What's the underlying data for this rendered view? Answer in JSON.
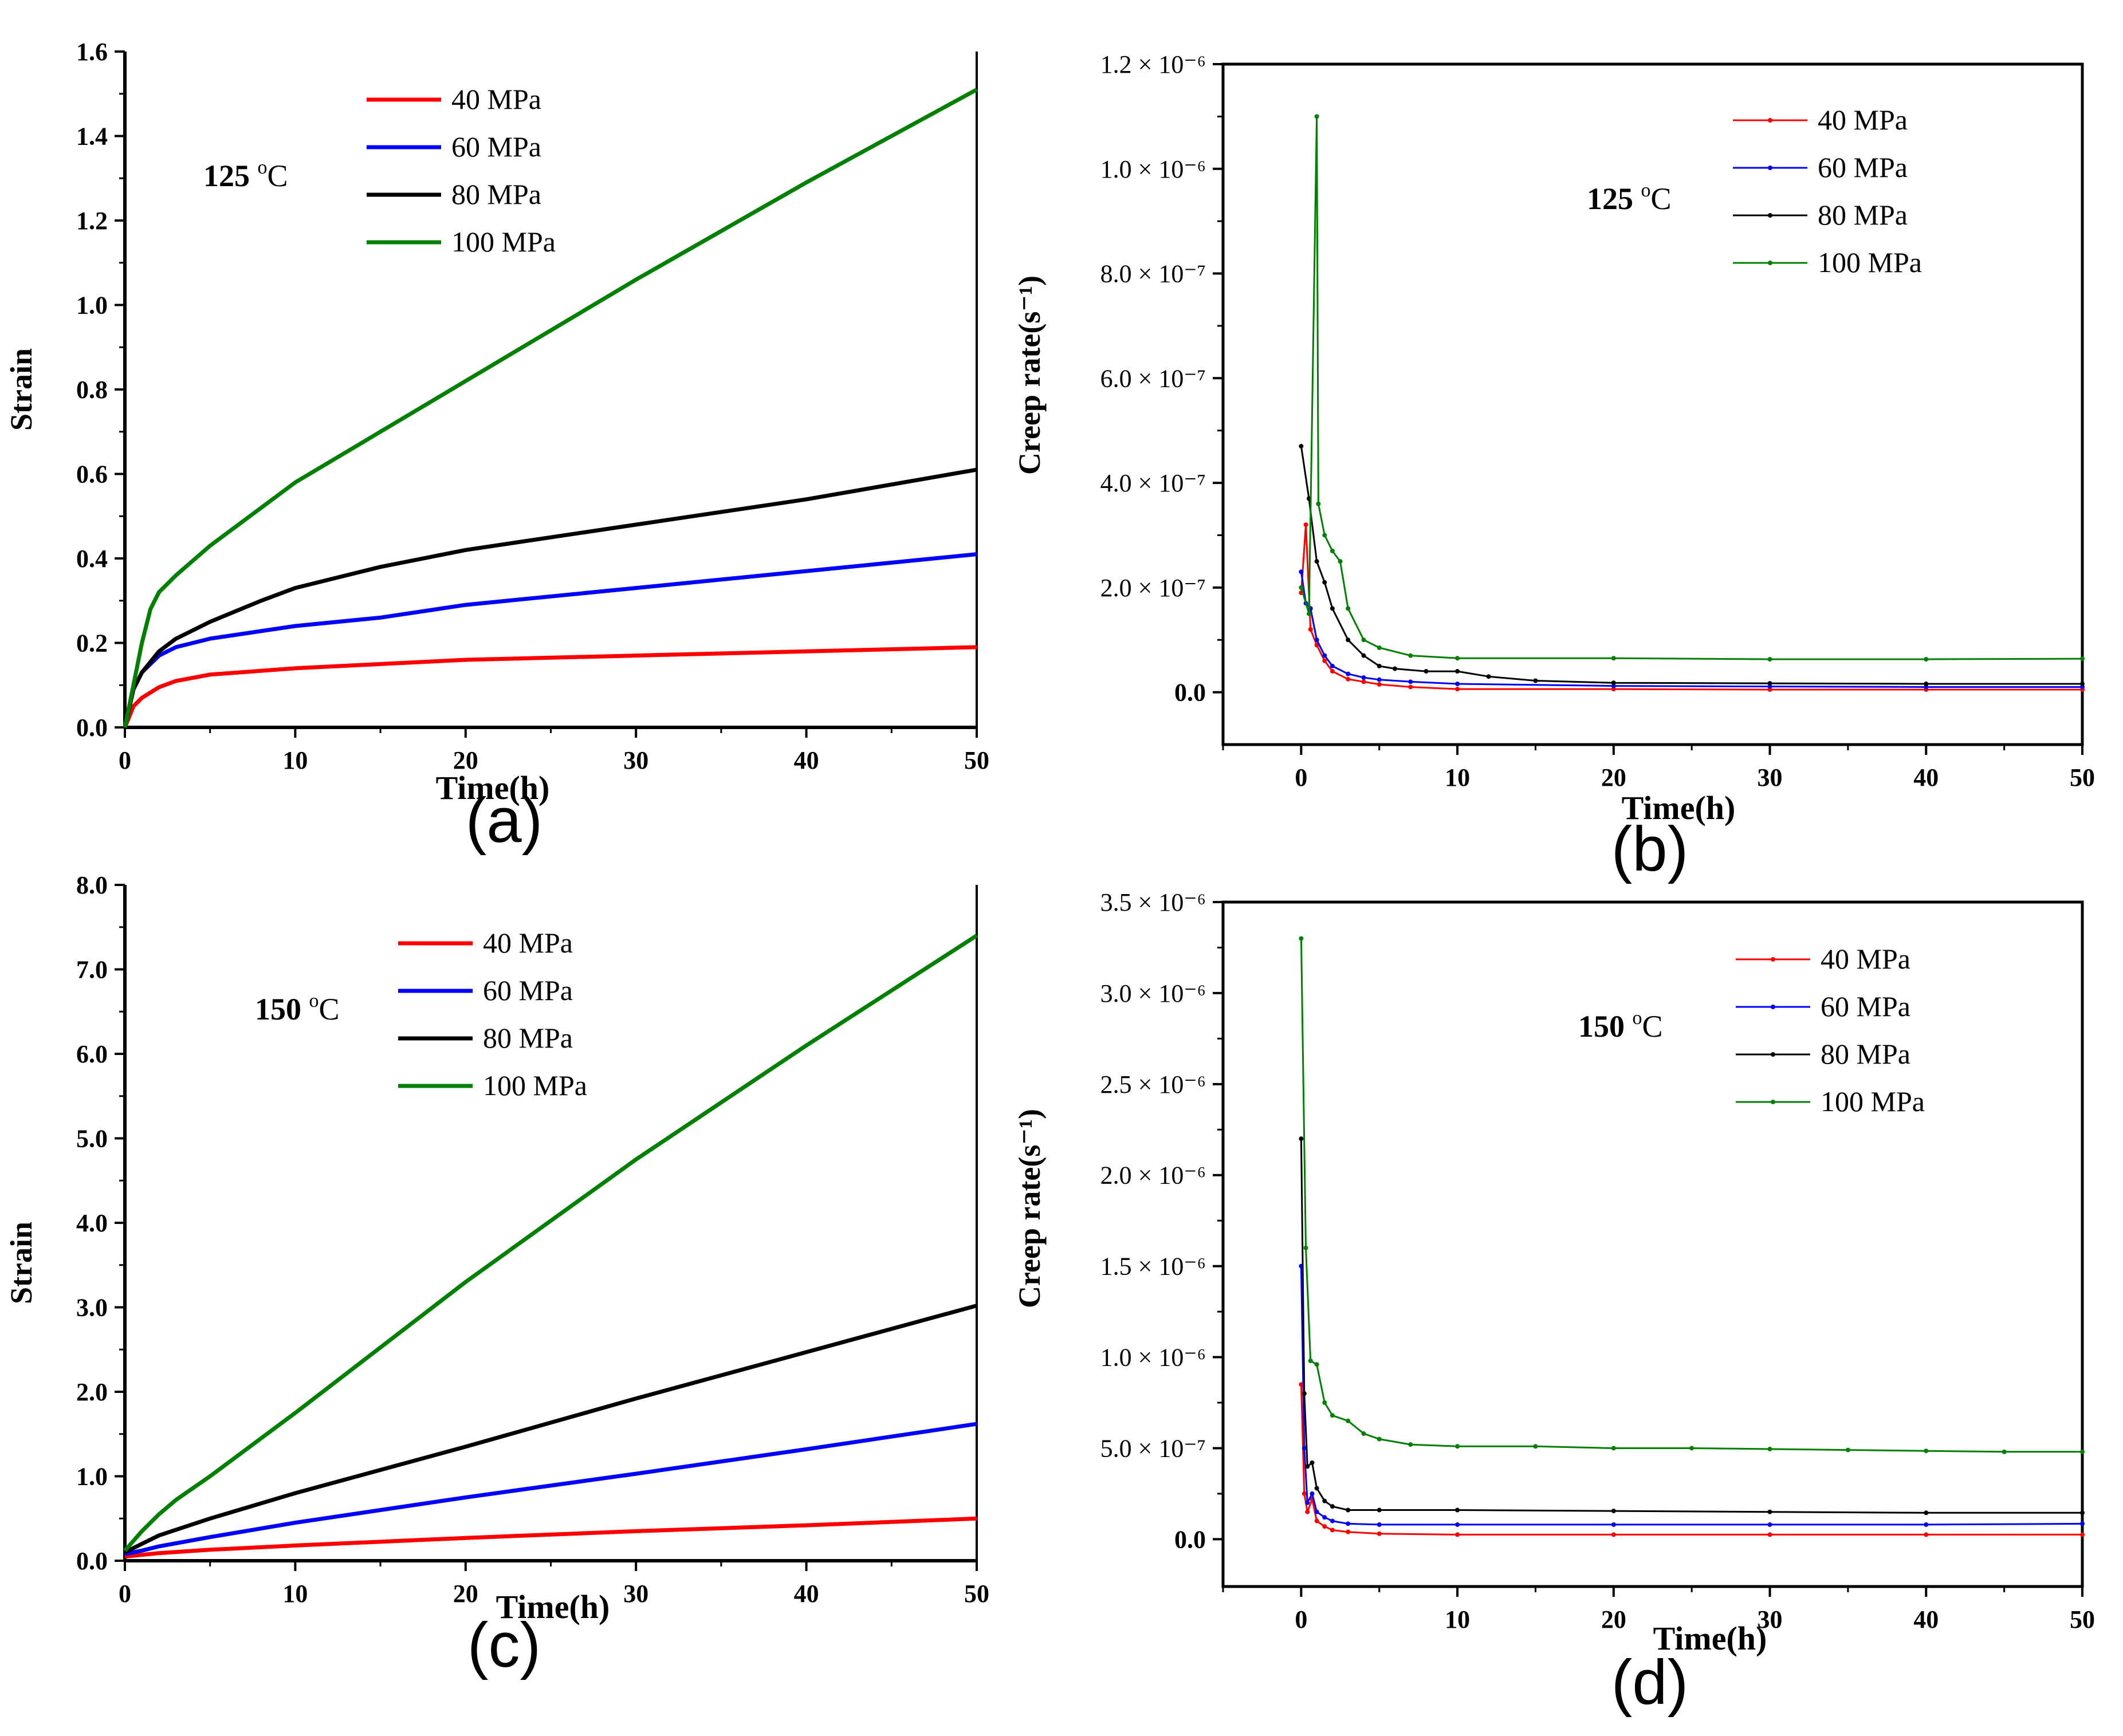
{
  "chart_data": [
    {
      "panel": "(a)",
      "type": "line",
      "annotation": "125 oC",
      "xlabel": "Time(h)",
      "ylabel": "Strain",
      "xlim": [
        0,
        50
      ],
      "ylim": [
        0,
        1.6
      ],
      "xticks": [
        "0",
        "10",
        "20",
        "30",
        "40",
        "50"
      ],
      "xtick_values": [
        0,
        10,
        20,
        30,
        40,
        50
      ],
      "yticks": [
        "0.0",
        "0.2",
        "0.4",
        "0.6",
        "0.8",
        "1.0",
        "1.2",
        "1.4",
        "1.6"
      ],
      "ytick_values": [
        0,
        0.2,
        0.4,
        0.6,
        0.8,
        1.0,
        1.2,
        1.4,
        1.6
      ],
      "legend_position": "top-center",
      "markers": false,
      "series": [
        {
          "name": "40 MPa",
          "color": "#ff0000",
          "x": [
            0,
            0.5,
            1,
            2,
            3,
            5,
            10,
            15,
            20,
            30,
            40,
            50
          ],
          "y": [
            0,
            0.05,
            0.07,
            0.095,
            0.11,
            0.125,
            0.14,
            0.15,
            0.16,
            0.17,
            0.18,
            0.19
          ]
        },
        {
          "name": "60 MPa",
          "color": "#0000ff",
          "x": [
            0,
            0.5,
            1,
            2,
            3,
            5,
            10,
            15,
            20,
            30,
            40,
            50
          ],
          "y": [
            0,
            0.09,
            0.13,
            0.17,
            0.19,
            0.21,
            0.24,
            0.26,
            0.29,
            0.33,
            0.37,
            0.41
          ]
        },
        {
          "name": "80 MPa",
          "color": "#000000",
          "x": [
            0,
            0.5,
            1,
            2,
            3,
            5,
            8,
            10,
            15,
            20,
            30,
            40,
            50
          ],
          "y": [
            0,
            0.09,
            0.13,
            0.18,
            0.21,
            0.25,
            0.3,
            0.33,
            0.38,
            0.42,
            0.48,
            0.54,
            0.61
          ]
        },
        {
          "name": "100 MPa",
          "color": "#008000",
          "x": [
            0,
            0.5,
            1,
            1.5,
            2,
            3,
            5,
            10,
            15,
            20,
            30,
            40,
            50
          ],
          "y": [
            0,
            0.1,
            0.2,
            0.28,
            0.32,
            0.36,
            0.43,
            0.58,
            0.7,
            0.82,
            1.06,
            1.29,
            1.51
          ]
        }
      ]
    },
    {
      "panel": "(b)",
      "type": "line",
      "annotation": "125 oC",
      "xlabel": "Time(h)",
      "ylabel": "Creep rate(s⁻¹)",
      "xlim": [
        -5,
        50
      ],
      "ylim": [
        -1e-07,
        1.2e-06
      ],
      "xticks": [
        "0",
        "10",
        "20",
        "30",
        "40",
        "50"
      ],
      "xtick_values": [
        0,
        10,
        20,
        30,
        40,
        50
      ],
      "yticks": [
        "0.0",
        "2.0 × 10⁻⁷",
        "4.0 × 10⁻⁷",
        "6.0 × 10⁻⁷",
        "8.0 × 10⁻⁷",
        "1.0 × 10⁻⁶",
        "1.2 × 10⁻⁶"
      ],
      "ytick_values": [
        0,
        2e-07,
        4e-07,
        6e-07,
        8e-07,
        1e-06,
        1.2e-06
      ],
      "legend_position": "top-right",
      "markers": true,
      "series": [
        {
          "name": "40 MPa",
          "color": "#ff0000",
          "x": [
            0,
            0.3,
            0.6,
            1,
            1.5,
            2,
            3,
            4,
            5,
            7,
            10,
            20,
            30,
            40,
            50
          ],
          "y": [
            1.9e-07,
            3.2e-07,
            1.2e-07,
            9e-08,
            6e-08,
            4e-08,
            2.5e-08,
            2e-08,
            1.5e-08,
            1e-08,
            6e-09,
            6e-09,
            5e-09,
            5e-09,
            5e-09
          ]
        },
        {
          "name": "60 MPa",
          "color": "#0000ff",
          "x": [
            0,
            0.3,
            0.6,
            1,
            1.5,
            2,
            3,
            4,
            5,
            7,
            10,
            20,
            30,
            40,
            50
          ],
          "y": [
            2.3e-07,
            1.7e-07,
            1.6e-07,
            1e-07,
            7e-08,
            5e-08,
            3.5e-08,
            2.8e-08,
            2.4e-08,
            2e-08,
            1.6e-08,
            1.2e-08,
            1.1e-08,
            1e-08,
            1e-08
          ]
        },
        {
          "name": "80 MPa",
          "color": "#000000",
          "x": [
            0,
            0.5,
            1,
            1.5,
            2,
            3,
            4,
            5,
            6,
            8,
            10,
            12,
            15,
            20,
            30,
            40,
            50
          ],
          "y": [
            4.7e-07,
            3.7e-07,
            2.5e-07,
            2.1e-07,
            1.6e-07,
            1e-07,
            7e-08,
            5e-08,
            4.5e-08,
            4e-08,
            4e-08,
            3e-08,
            2.2e-08,
            1.8e-08,
            1.7e-08,
            1.6e-08,
            1.6e-08
          ]
        },
        {
          "name": "100 MPa",
          "color": "#008000",
          "x": [
            0,
            0.5,
            1,
            1.1,
            1.5,
            2,
            2.5,
            3,
            4,
            5,
            7,
            10,
            20,
            30,
            40,
            50
          ],
          "y": [
            2e-07,
            1.5e-07,
            1.1e-06,
            3.6e-07,
            3e-07,
            2.7e-07,
            2.5e-07,
            1.6e-07,
            1e-07,
            8.5e-08,
            7e-08,
            6.5e-08,
            6.5e-08,
            6.3e-08,
            6.3e-08,
            6.4e-08
          ]
        }
      ]
    },
    {
      "panel": "(c)",
      "type": "line",
      "annotation": "150 oC",
      "xlabel": "Time(h)",
      "ylabel": "Strain",
      "xlim": [
        0,
        50
      ],
      "ylim": [
        0,
        8.0
      ],
      "xticks": [
        "0",
        "10",
        "20",
        "30",
        "40",
        "50"
      ],
      "xtick_values": [
        0,
        10,
        20,
        30,
        40,
        50
      ],
      "yticks": [
        "0.0",
        "1.0",
        "2.0",
        "3.0",
        "4.0",
        "5.0",
        "6.0",
        "7.0",
        "8.0"
      ],
      "ytick_values": [
        0,
        1,
        2,
        3,
        4,
        5,
        6,
        7,
        8
      ],
      "legend_position": "top-center",
      "markers": false,
      "series": [
        {
          "name": "40 MPa",
          "color": "#ff0000",
          "x": [
            0,
            1,
            2,
            5,
            10,
            20,
            30,
            40,
            50
          ],
          "y": [
            0.05,
            0.07,
            0.09,
            0.13,
            0.18,
            0.27,
            0.35,
            0.42,
            0.5
          ]
        },
        {
          "name": "60 MPa",
          "color": "#0000ff",
          "x": [
            0,
            1,
            2,
            5,
            10,
            20,
            30,
            40,
            50
          ],
          "y": [
            0.08,
            0.12,
            0.17,
            0.28,
            0.45,
            0.75,
            1.03,
            1.32,
            1.62
          ]
        },
        {
          "name": "80 MPa",
          "color": "#000000",
          "x": [
            0,
            1,
            2,
            5,
            10,
            20,
            30,
            40,
            50
          ],
          "y": [
            0.1,
            0.2,
            0.3,
            0.5,
            0.8,
            1.35,
            1.92,
            2.47,
            3.02
          ]
        },
        {
          "name": "100 MPa",
          "color": "#008000",
          "x": [
            0,
            1,
            2,
            3,
            5,
            10,
            20,
            30,
            40,
            50
          ],
          "y": [
            0.12,
            0.35,
            0.55,
            0.72,
            1.0,
            1.75,
            3.3,
            4.75,
            6.1,
            7.4
          ]
        }
      ]
    },
    {
      "panel": "(d)",
      "type": "line",
      "annotation": "150 oC",
      "xlabel": "Time(h)",
      "ylabel": "Creep rate(s⁻¹)",
      "xlim": [
        -5,
        50
      ],
      "ylim": [
        -2.6e-07,
        3.5e-06
      ],
      "xticks": [
        "0",
        "10",
        "20",
        "30",
        "40",
        "50"
      ],
      "xtick_values": [
        0,
        10,
        20,
        30,
        40,
        50
      ],
      "yticks": [
        "0.0",
        "5.0 × 10⁻⁷",
        "1.0 × 10⁻⁶",
        "1.5 × 10⁻⁶",
        "2.0 × 10⁻⁶",
        "2.5 × 10⁻⁶",
        "3.0 × 10⁻⁶",
        "3.5 × 10⁻⁶"
      ],
      "ytick_values": [
        0,
        5e-07,
        1e-06,
        1.5e-06,
        2e-06,
        2.5e-06,
        3e-06,
        3.5e-06
      ],
      "legend_position": "top-right",
      "markers": true,
      "series": [
        {
          "name": "40 MPa",
          "color": "#ff0000",
          "x": [
            0,
            0.2,
            0.4,
            0.7,
            1,
            1.5,
            2,
            3,
            5,
            10,
            20,
            30,
            40,
            50
          ],
          "y": [
            8.5e-07,
            2.5e-07,
            1.5e-07,
            2.2e-07,
            1e-07,
            7e-08,
            5e-08,
            4e-08,
            3e-08,
            2.5e-08,
            2.5e-08,
            2.5e-08,
            2.5e-08,
            2.5e-08
          ]
        },
        {
          "name": "60 MPa",
          "color": "#0000ff",
          "x": [
            0,
            0.2,
            0.4,
            0.7,
            1,
            1.5,
            2,
            3,
            5,
            10,
            20,
            30,
            40,
            50
          ],
          "y": [
            1.5e-06,
            5e-07,
            2e-07,
            2.5e-07,
            1.5e-07,
            1.2e-07,
            1e-07,
            8.5e-08,
            8e-08,
            8e-08,
            8e-08,
            8e-08,
            8e-08,
            8.5e-08
          ]
        },
        {
          "name": "80 MPa",
          "color": "#000000",
          "x": [
            0,
            0.2,
            0.4,
            0.7,
            1,
            1.5,
            2,
            3,
            5,
            10,
            20,
            30,
            40,
            50
          ],
          "y": [
            2.2e-06,
            8e-07,
            4e-07,
            4.2e-07,
            2.8e-07,
            2.1e-07,
            1.8e-07,
            1.6e-07,
            1.6e-07,
            1.6e-07,
            1.55e-07,
            1.5e-07,
            1.45e-07,
            1.45e-07
          ]
        },
        {
          "name": "100 MPa",
          "color": "#008000",
          "x": [
            0,
            0.3,
            0.6,
            1,
            1.5,
            2,
            3,
            4,
            5,
            7,
            10,
            15,
            20,
            25,
            30,
            35,
            40,
            45,
            50
          ],
          "y": [
            3.3e-06,
            1.6e-06,
            9.8e-07,
            9.6e-07,
            7.5e-07,
            6.8e-07,
            6.5e-07,
            5.8e-07,
            5.5e-07,
            5.2e-07,
            5.1e-07,
            5.1e-07,
            5e-07,
            5e-07,
            4.95e-07,
            4.9e-07,
            4.85e-07,
            4.8e-07,
            4.8e-07
          ]
        }
      ]
    }
  ]
}
